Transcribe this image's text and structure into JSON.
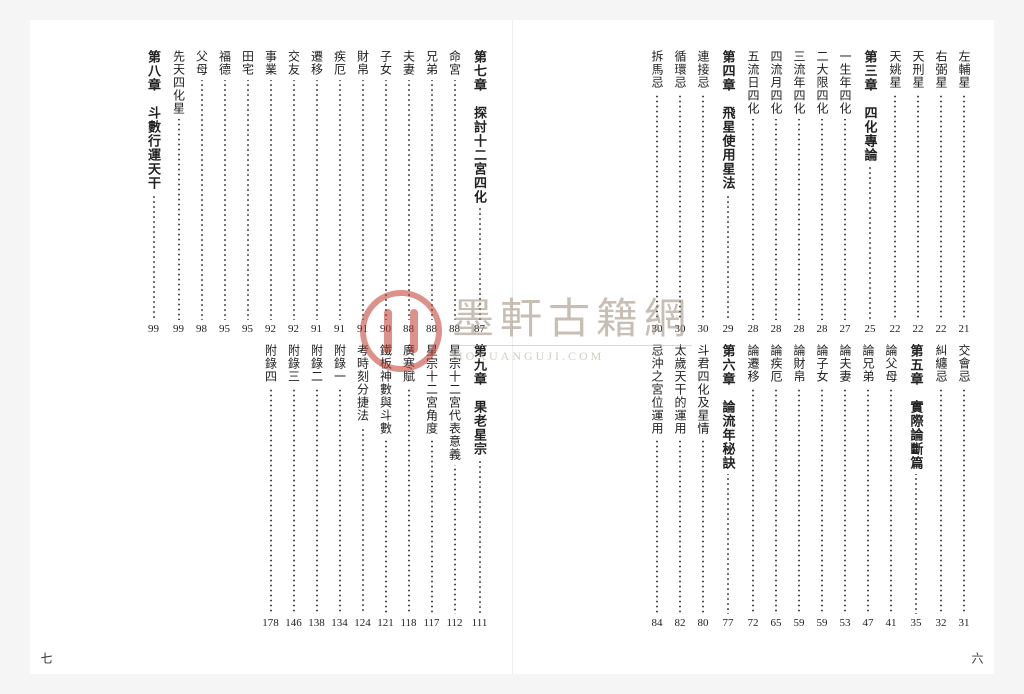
{
  "watermark": {
    "cn": "墨軒古籍網",
    "en": "MOXUANGUJI.COM",
    "logo_color": "#c0392b",
    "text_color": "#9a8a78"
  },
  "page_left_num": "七",
  "page_right_num": "六",
  "right_page": {
    "top": [
      {
        "label": "左輔星",
        "page": "21",
        "type": "item"
      },
      {
        "label": "右弼星",
        "page": "22",
        "type": "item"
      },
      {
        "label": "天刑星",
        "page": "22",
        "type": "item"
      },
      {
        "label": "天姚星",
        "page": "22",
        "type": "item"
      },
      {
        "label": "第三章　四化專論",
        "page": "25",
        "type": "chapter"
      },
      {
        "label": "一生年四化",
        "page": "27",
        "type": "item"
      },
      {
        "label": "二大限四化",
        "page": "28",
        "type": "item"
      },
      {
        "label": "三流年四化",
        "page": "28",
        "type": "item"
      },
      {
        "label": "四流月四化",
        "page": "28",
        "type": "item"
      },
      {
        "label": "五流日四化",
        "page": "28",
        "type": "item"
      },
      {
        "label": "第四章　飛星使用星法",
        "page": "29",
        "type": "chapter"
      },
      {
        "label": "連接忌",
        "page": "30",
        "type": "item"
      },
      {
        "label": "循環忌",
        "page": "30",
        "type": "item"
      },
      {
        "label": "拆馬忌",
        "page": "30",
        "type": "item"
      }
    ],
    "bottom": [
      {
        "label": "交會忌",
        "page": "31",
        "type": "item"
      },
      {
        "label": "糾纏忌",
        "page": "32",
        "type": "item"
      },
      {
        "label": "第五章　實際論斷篇",
        "page": "35",
        "type": "chapter"
      },
      {
        "label": "論父母",
        "page": "41",
        "type": "item"
      },
      {
        "label": "論兄弟",
        "page": "47",
        "type": "item"
      },
      {
        "label": "論夫妻",
        "page": "53",
        "type": "item"
      },
      {
        "label": "論子女",
        "page": "59",
        "type": "item"
      },
      {
        "label": "論財帛",
        "page": "59",
        "type": "item"
      },
      {
        "label": "論疾厄",
        "page": "65",
        "type": "item"
      },
      {
        "label": "論遷移",
        "page": "72",
        "type": "item"
      },
      {
        "label": "第六章　論流年秘訣",
        "page": "77",
        "type": "chapter"
      },
      {
        "label": "斗君四化及星情",
        "page": "80",
        "type": "item"
      },
      {
        "label": "太歲天干的運用",
        "page": "82",
        "type": "item"
      },
      {
        "label": "忌沖之宮位運用",
        "page": "84",
        "type": "item"
      }
    ]
  },
  "left_page": {
    "top": [
      {
        "label": "第七章　探討十二宮四化",
        "page": "87",
        "type": "chapter"
      },
      {
        "label": "命宮",
        "page": "88",
        "type": "item"
      },
      {
        "label": "兄弟",
        "page": "88",
        "type": "item"
      },
      {
        "label": "夫妻",
        "page": "88",
        "type": "item"
      },
      {
        "label": "子女",
        "page": "90",
        "type": "item"
      },
      {
        "label": "財帛",
        "page": "91",
        "type": "item"
      },
      {
        "label": "疾厄",
        "page": "91",
        "type": "item"
      },
      {
        "label": "遷移",
        "page": "91",
        "type": "item"
      },
      {
        "label": "交友",
        "page": "92",
        "type": "item"
      },
      {
        "label": "事業",
        "page": "92",
        "type": "item"
      },
      {
        "label": "田宅",
        "page": "95",
        "type": "item"
      },
      {
        "label": "福德",
        "page": "95",
        "type": "item"
      },
      {
        "label": "父母",
        "page": "98",
        "type": "item"
      },
      {
        "label": "先天四化星",
        "page": "99",
        "type": "item"
      },
      {
        "label": "第八章　斗數行運天干",
        "page": "99",
        "type": "chapter"
      }
    ],
    "bottom": [
      {
        "label": "第九章　果老星宗",
        "page": "111",
        "type": "chapter"
      },
      {
        "label": "星宗十二宮代表意義",
        "page": "112",
        "type": "item"
      },
      {
        "label": "星宗十二宮角度",
        "page": "117",
        "type": "item"
      },
      {
        "label": "廣寒賦",
        "page": "118",
        "type": "item"
      },
      {
        "label": "鐵板神數與斗數",
        "page": "121",
        "type": "item"
      },
      {
        "label": "考時刻分捷法",
        "page": "124",
        "type": "item"
      },
      {
        "label": "附錄一",
        "page": "134",
        "type": "item"
      },
      {
        "label": "附錄二",
        "page": "138",
        "type": "item"
      },
      {
        "label": "附錄三",
        "page": "146",
        "type": "item"
      },
      {
        "label": "附錄四",
        "page": "178",
        "type": "item"
      }
    ]
  }
}
